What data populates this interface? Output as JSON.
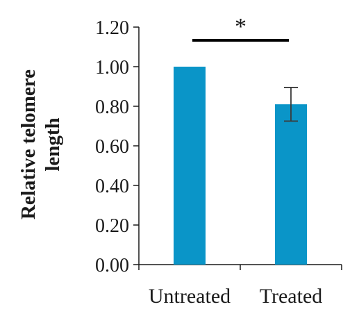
{
  "chart_data": {
    "type": "bar",
    "categories": [
      "Untreated",
      "Treated"
    ],
    "values": [
      1.0,
      0.81
    ],
    "errors": [
      0.0,
      0.085
    ],
    "ylabel_lines": [
      "Relative telomere",
      "length"
    ],
    "ylim": [
      0,
      1.2
    ],
    "yticks": [
      0.0,
      0.2,
      0.4,
      0.6,
      0.8,
      1.0,
      1.2
    ],
    "ytick_labels": [
      "0.00",
      "0.20",
      "0.40",
      "0.60",
      "0.80",
      "1.00",
      "1.20"
    ],
    "bar_color": "#0a95c8",
    "significance": {
      "between": [
        "Untreated",
        "Treated"
      ],
      "label": "*"
    },
    "grid": false
  }
}
